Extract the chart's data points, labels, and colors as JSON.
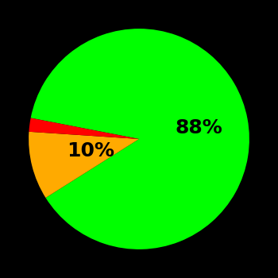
{
  "slices": [
    88,
    10,
    2
  ],
  "colors": [
    "#00ff00",
    "#ffaa00",
    "#ff0000"
  ],
  "labels": [
    "88%",
    "10%",
    ""
  ],
  "background_color": "#000000",
  "text_color": "#000000",
  "startangle": 169,
  "counterclock": false,
  "label_fontsize": 18,
  "label_fontweight": "bold",
  "label_radii": [
    0.55,
    0.45,
    0.0
  ]
}
